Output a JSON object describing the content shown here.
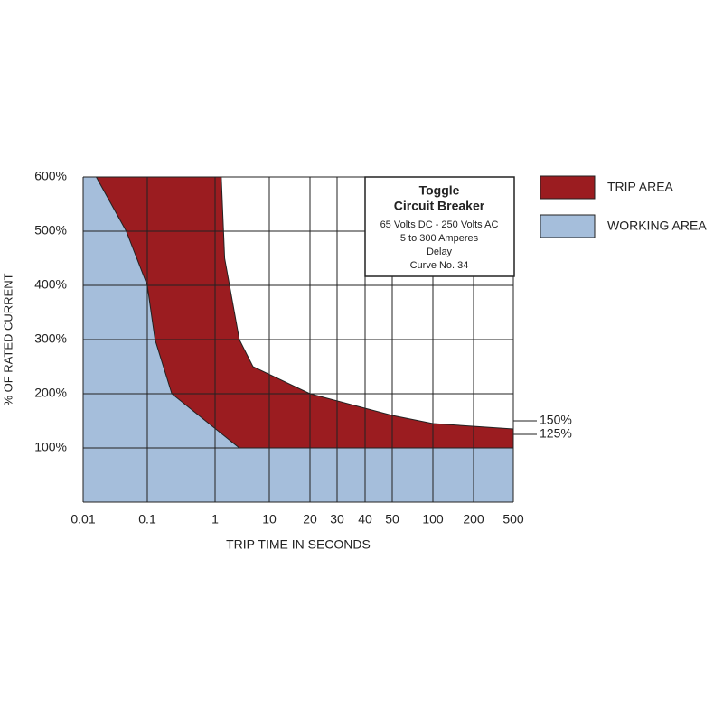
{
  "chart_data": {
    "type": "area",
    "title_lines": [
      "Toggle",
      "Circuit Breaker"
    ],
    "info_lines": [
      "65 Volts DC - 250 Volts AC",
      "5 to 300 Amperes",
      "Delay",
      "Curve No. 34"
    ],
    "x_label": "TRIP TIME IN SECONDS",
    "y_label": "% OF RATED CURRENT",
    "xscale": "log",
    "xlim": [
      0.01,
      500
    ],
    "xticks": [
      0.01,
      0.1,
      1,
      10,
      20,
      30,
      40,
      50,
      100,
      200,
      500
    ],
    "ylim": [
      0,
      600
    ],
    "yticks": [
      {
        "value": 100,
        "label": "100%"
      },
      {
        "value": 200,
        "label": "200%"
      },
      {
        "value": 300,
        "label": "300%"
      },
      {
        "value": 400,
        "label": "400%"
      },
      {
        "value": 500,
        "label": "500%"
      },
      {
        "value": 600,
        "label": "600%"
      }
    ],
    "grid": true,
    "legend": "right",
    "series": [
      {
        "name": "TRIP AREA",
        "color": "#9b1c20",
        "x": [
          0.016,
          1.3,
          1.5,
          2.8,
          5,
          20,
          50,
          100,
          500
        ],
        "values": [
          600,
          600,
          450,
          300,
          250,
          200,
          160,
          145,
          135
        ]
      },
      {
        "name": "WORKING AREA",
        "color": "#a5bedb",
        "x": [
          0.01,
          0.016,
          0.047,
          0.1,
          0.13,
          0.23,
          2.8,
          500
        ],
        "values": [
          600,
          600,
          500,
          400,
          300,
          200,
          100,
          100
        ]
      }
    ],
    "annotations": [
      {
        "text": "150%",
        "y": 150
      },
      {
        "text": "125%",
        "y": 125
      }
    ]
  }
}
